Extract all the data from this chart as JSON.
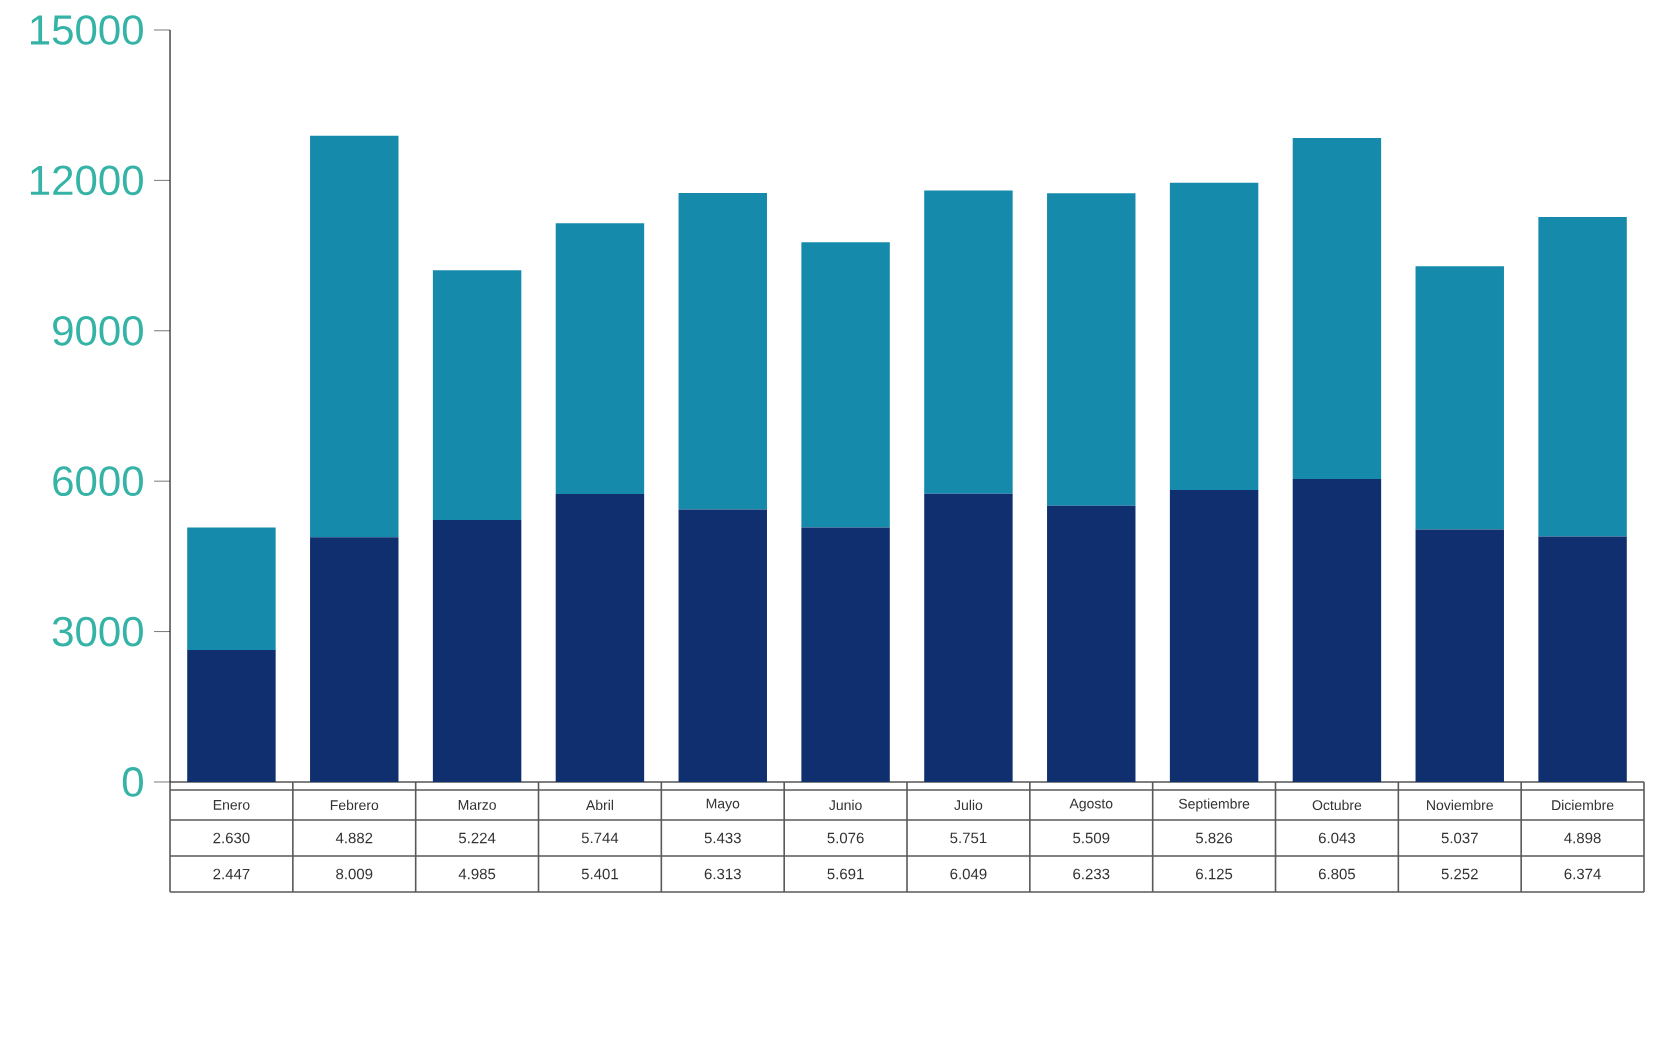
{
  "chart_data": {
    "type": "bar",
    "stacked": true,
    "categories": [
      "Enero",
      "Febrero",
      "Marzo",
      "Abril",
      "Mayo",
      "Junio",
      "Julio",
      "Agosto",
      "Septiembre",
      "Octubre",
      "Noviembre",
      "Diciembre"
    ],
    "series": [
      {
        "color": "#0f2f6e",
        "values": [
          2630,
          4882,
          5224,
          5744,
          5433,
          5076,
          5751,
          5509,
          5826,
          6043,
          5037,
          4898
        ],
        "value_labels": [
          "2.630",
          "4.882",
          "5.224",
          "5.744",
          "5.433",
          "5.076",
          "5.751",
          "5.509",
          "5.826",
          "6.043",
          "5.037",
          "4.898"
        ]
      },
      {
        "color": "#168aab",
        "values": [
          2447,
          8009,
          4985,
          5401,
          6313,
          5691,
          6049,
          6233,
          6125,
          6805,
          5252,
          6374
        ],
        "value_labels": [
          "2.447",
          "8.009",
          "4.985",
          "5.401",
          "6.313",
          "5.691",
          "6.049",
          "6.233",
          "6.125",
          "6.805",
          "5.252",
          "6.374"
        ]
      }
    ],
    "ylim": [
      0,
      15000
    ],
    "yticks": [
      0,
      3000,
      6000,
      9000,
      12000,
      15000
    ]
  }
}
